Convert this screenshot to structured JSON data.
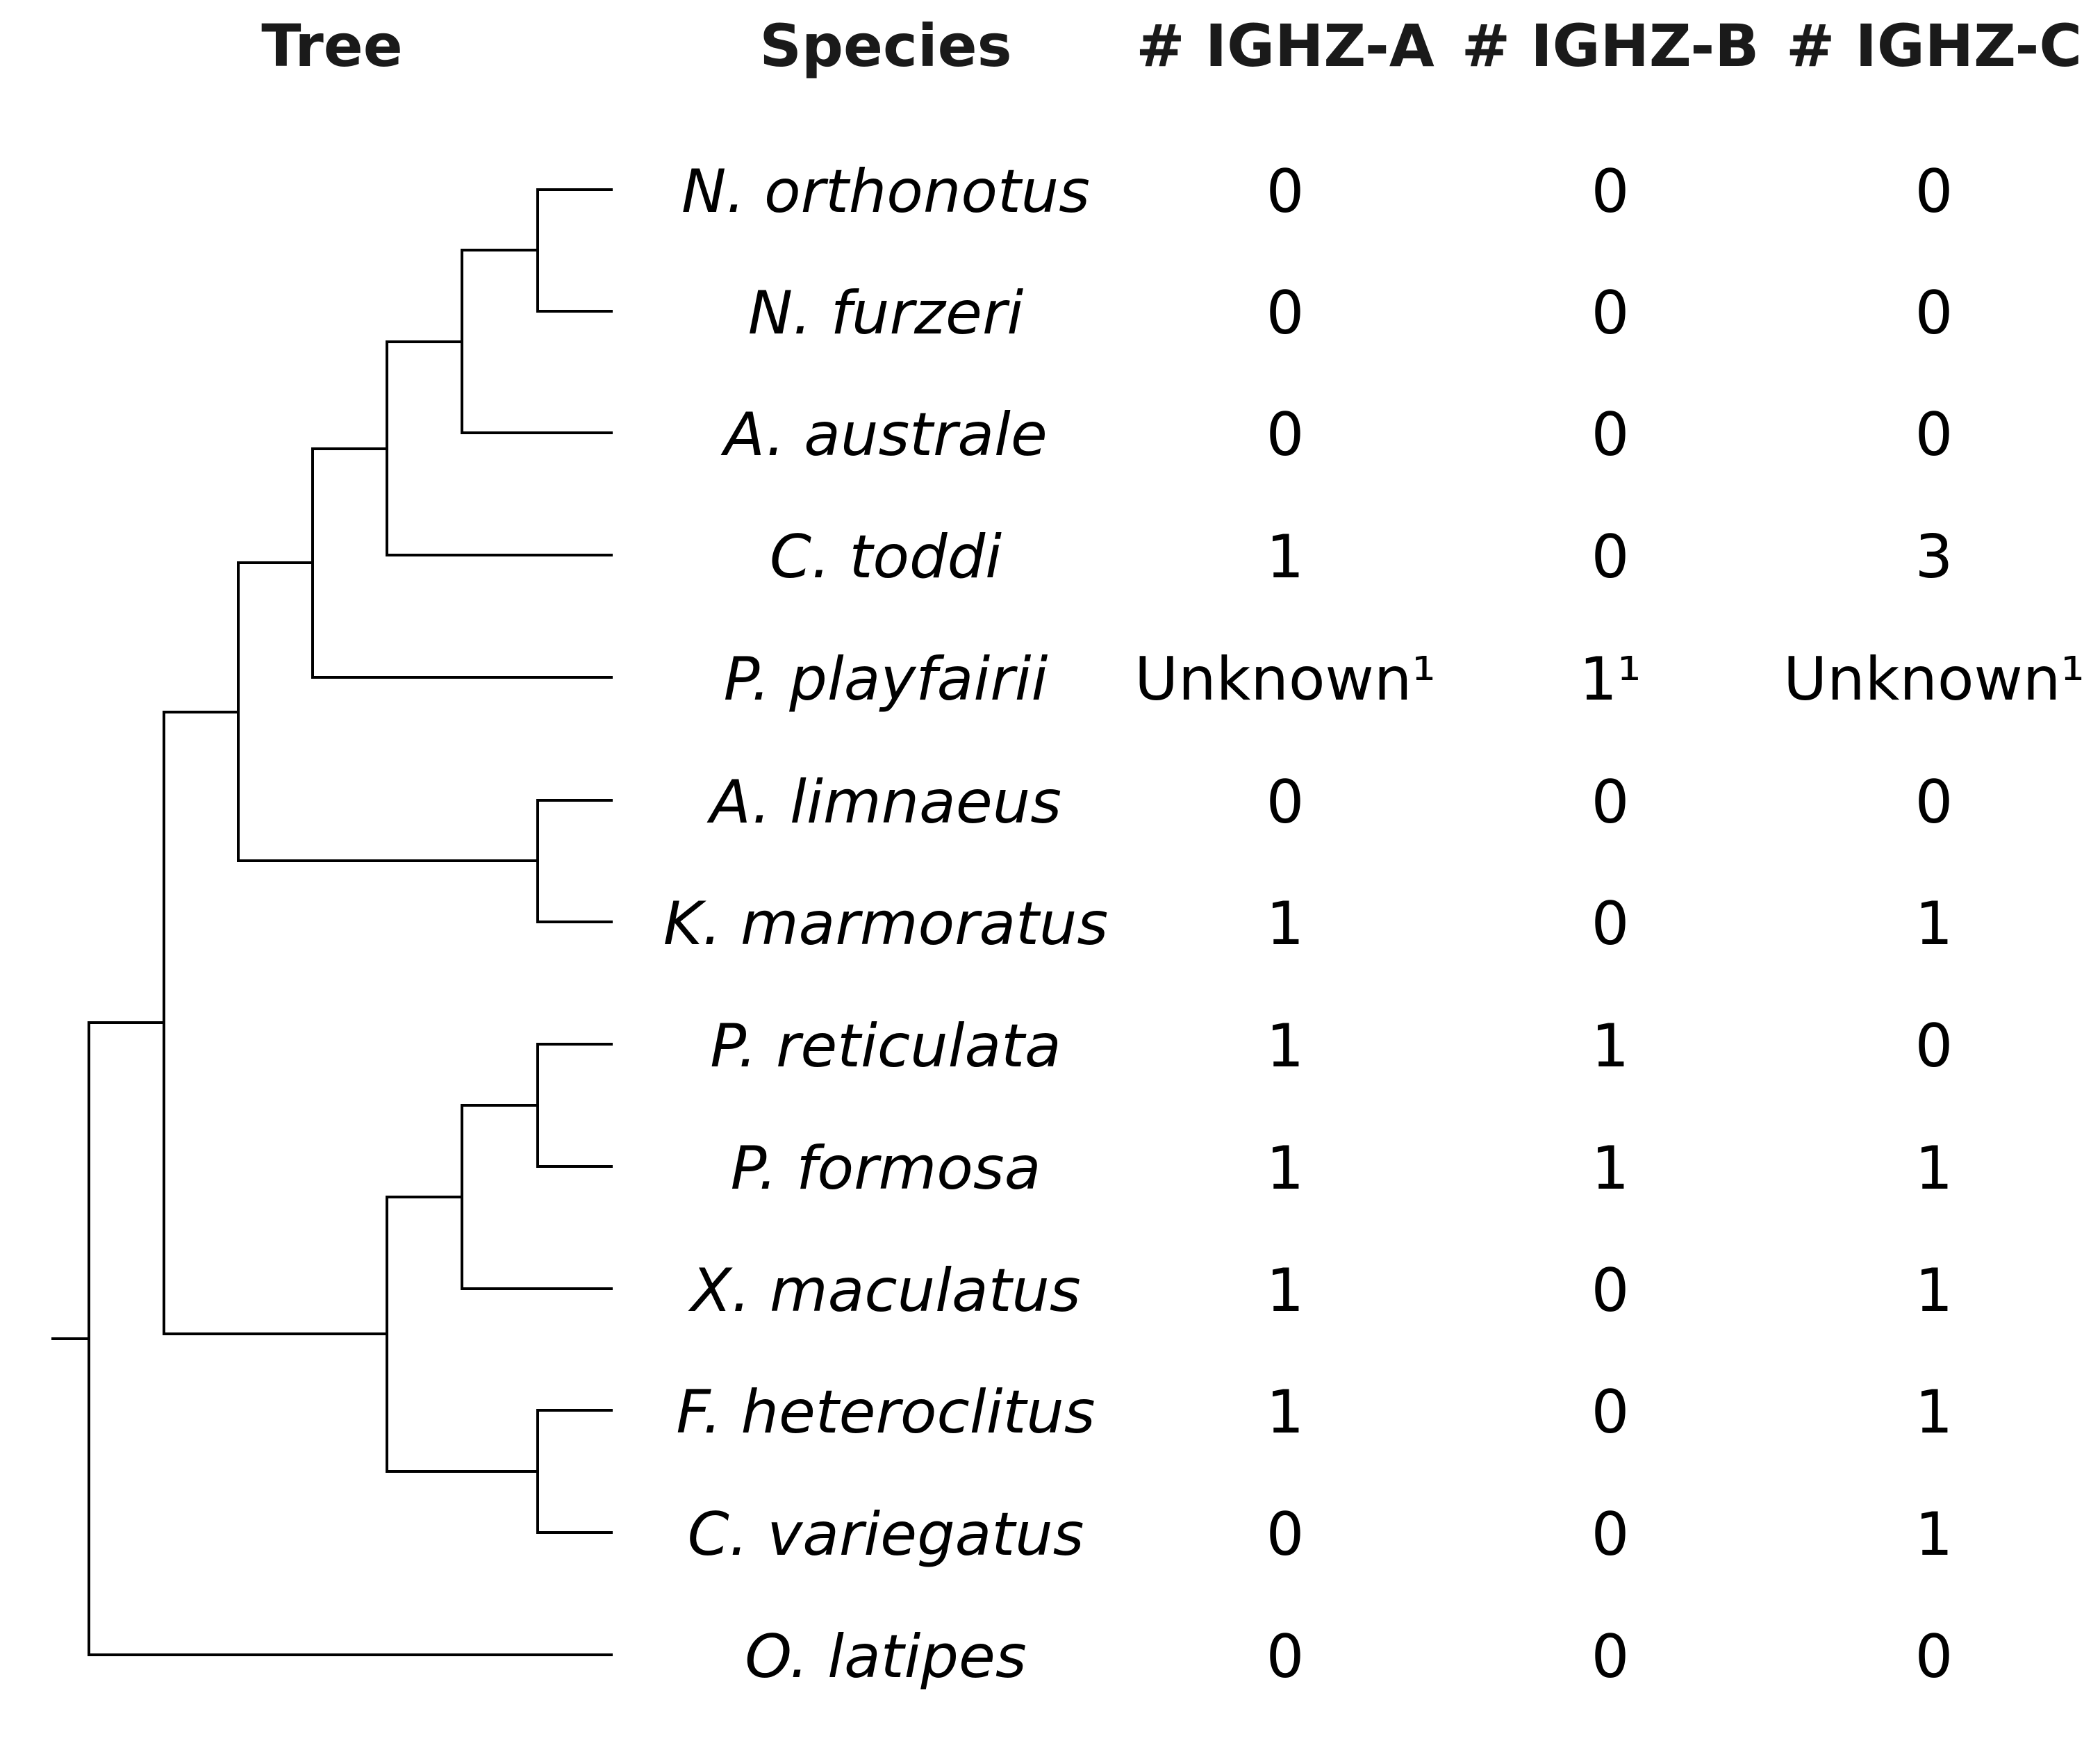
{
  "headers": {
    "tree": "Tree",
    "species": "Species",
    "ighz_a": "# IGHZ-A",
    "ighz_b": "# IGHZ-B",
    "ighz_c": "# IGHZ-C"
  },
  "rows": [
    {
      "species": "N. orthonotus",
      "a": "0",
      "b": "0",
      "c": "0"
    },
    {
      "species": "N. furzeri",
      "a": "0",
      "b": "0",
      "c": "0"
    },
    {
      "species": "A. australe",
      "a": "0",
      "b": "0",
      "c": "0"
    },
    {
      "species": "C. toddi",
      "a": "1",
      "b": "0",
      "c": "3"
    },
    {
      "species": "P. playfairii",
      "a": "Unknown¹",
      "b": "1¹",
      "c": "Unknown¹"
    },
    {
      "species": "A. limnaeus",
      "a": "0",
      "b": "0",
      "c": "0"
    },
    {
      "species": "K. marmoratus",
      "a": "1",
      "b": "0",
      "c": "1"
    },
    {
      "species": "P. reticulata",
      "a": "1",
      "b": "1",
      "c": "0"
    },
    {
      "species": "P. formosa",
      "a": "1",
      "b": "1",
      "c": "1"
    },
    {
      "species": "X. maculatus",
      "a": "1",
      "b": "0",
      "c": "1"
    },
    {
      "species": "F. heteroclitus",
      "a": "1",
      "b": "0",
      "c": "1"
    },
    {
      "species": "C. variegatus",
      "a": "0",
      "b": "0",
      "c": "1"
    },
    {
      "species": "O. latipes",
      "a": "0",
      "b": "0",
      "c": "0"
    }
  ],
  "tree": {
    "newick": "((((((N. orthonotus,N. furzeri),A. australe),C. toddi),P. playfairii),(A. limnaeus,K. marmoratus)),(((P. reticulata,P. formosa),X. maculatus),(F. heteroclitus,C. variegatus))),O. latipes);"
  }
}
